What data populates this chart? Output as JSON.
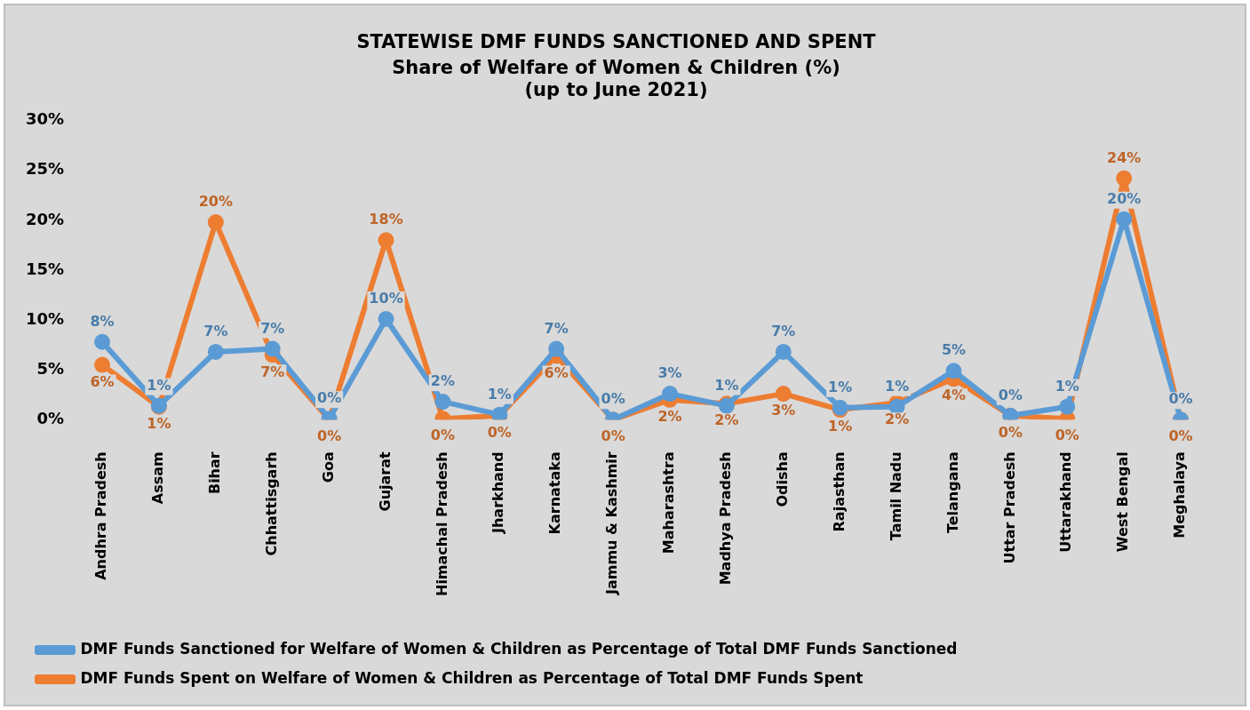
{
  "chart_data": {
    "type": "line",
    "title": "STATEWISE DMF FUNDS SANCTIONED AND SPENT",
    "subtitle": "Share of Welfare of Women & Children (%)",
    "annotations": [
      "(up to June 2021)"
    ],
    "categories": [
      "Andhra Pradesh",
      "Assam",
      "Bihar",
      "Chhattisgarh",
      "Goa",
      "Gujarat",
      "Himachal Pradesh",
      "Jharkhand",
      "Karnataka",
      "Jammu & Kashmir",
      "Maharashtra",
      "Madhya Pradesh",
      "Odisha",
      "Rajasthan",
      "Tamil Nadu",
      "Telangana",
      "Uttar Pradesh",
      "Uttarakhand",
      "West Bengal",
      "Meghalaya"
    ],
    "series": [
      {
        "name": "DMF Funds Sanctioned for Welfare of Women & Children as Percentage of Total DMF Funds Sanctioned",
        "color": "#5b9bd5",
        "values": [
          7.8,
          1.4,
          6.8,
          7.1,
          0.1,
          10.1,
          1.8,
          0.5,
          7.1,
          0.0,
          2.6,
          1.4,
          6.8,
          1.2,
          1.3,
          4.9,
          0.4,
          1.3,
          20.1,
          0.0
        ],
        "value_labels": [
          "8%",
          "1%",
          "7%",
          "7%",
          "0%",
          "10%",
          "2%",
          "1%",
          "7%",
          "0%",
          "3%",
          "1%",
          "7%",
          "1%",
          "1%",
          "5%",
          "0%",
          "1%",
          "20%",
          "0%"
        ]
      },
      {
        "name": "DMF Funds Spent on Welfare of Women & Children as Percentage of Total DMF Funds Spent",
        "color": "#ed7d31",
        "values": [
          5.5,
          1.3,
          19.8,
          6.5,
          0.0,
          18.0,
          0.1,
          0.4,
          6.4,
          0.0,
          2.0,
          1.6,
          2.6,
          1.0,
          1.7,
          4.1,
          0.4,
          0.1,
          24.2,
          0.0
        ],
        "value_labels": [
          "6%",
          "1%",
          "20%",
          "7%",
          "0%",
          "18%",
          "0%",
          "0%",
          "6%",
          "0%",
          "2%",
          "2%",
          "3%",
          "1%",
          "2%",
          "4%",
          "0%",
          "0%",
          "24%",
          "0%"
        ]
      }
    ],
    "ylim": [
      0,
      30
    ],
    "yticks": [
      {
        "value": 0,
        "label": "0%"
      },
      {
        "value": 5,
        "label": "5%"
      },
      {
        "value": 10,
        "label": "10%"
      },
      {
        "value": 15,
        "label": "15%"
      },
      {
        "value": 20,
        "label": "20%"
      },
      {
        "value": 25,
        "label": "25%"
      },
      {
        "value": 30,
        "label": "30%"
      }
    ],
    "grid": false,
    "legend": "bottom",
    "marker": "circle",
    "line_style": "solid"
  }
}
